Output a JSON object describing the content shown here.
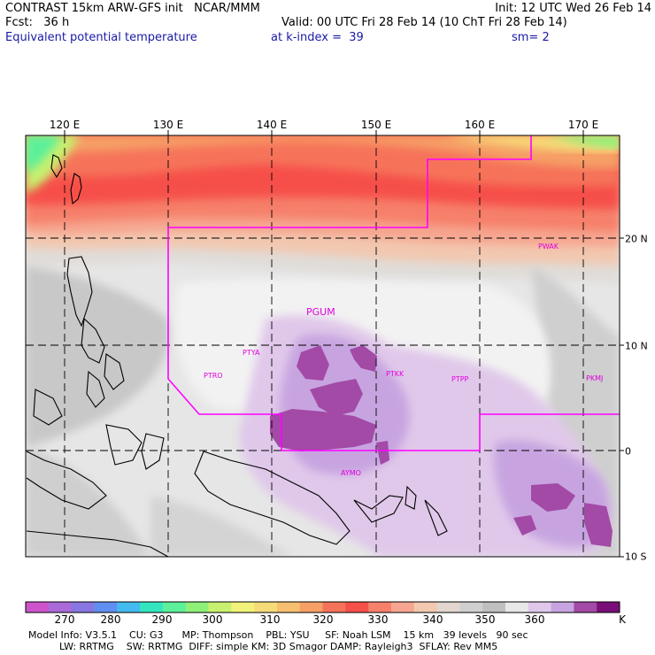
{
  "header": {
    "title": "CONTRAST 15km ARW-GFS init   NCAR/MMM",
    "init": "Init: 12 UTC Wed 26 Feb 14",
    "fcst": "Fcst:   36 h",
    "valid": "Valid: 00 UTC Fri 28 Feb 14 (10 ChT Fri 28 Feb 14)",
    "field": "Equivalent potential temperature",
    "level": "at k-index =  39",
    "smoothing": "sm= 2"
  },
  "map": {
    "lon_labels": [
      "120 E",
      "130 E",
      "140 E",
      "150 E",
      "160 E",
      "170 E"
    ],
    "lat_labels": [
      "20 N",
      "10 N",
      "0",
      "10 S"
    ],
    "stations": [
      {
        "id": "PGUM",
        "size": "large"
      },
      {
        "id": "PTYA",
        "size": "small"
      },
      {
        "id": "PTRO",
        "size": "small"
      },
      {
        "id": "PTKK",
        "size": "small"
      },
      {
        "id": "PTPP",
        "size": "small"
      },
      {
        "id": "PKMJ",
        "size": "small"
      },
      {
        "id": "PWAK",
        "size": "small"
      },
      {
        "id": "AYMO",
        "size": "small"
      }
    ],
    "colors": {
      "station": "#e000e0",
      "domain_line": "#ff00ff",
      "grid": "#000000"
    }
  },
  "colorbar": {
    "colors": [
      "#cc55cc",
      "#aa6ad8",
      "#8877e0",
      "#5f8ff0",
      "#44bbee",
      "#33e6c0",
      "#5cf09a",
      "#8ef078",
      "#c8f070",
      "#f2f27a",
      "#f6dc78",
      "#f6c070",
      "#f6a066",
      "#f6735a",
      "#f6504a",
      "#f6806a",
      "#f6a690",
      "#f2c8b0",
      "#e2d6ce",
      "#cfcfcf",
      "#bfbfbf",
      "#e8e8e8",
      "#e0c8ea",
      "#c7a4e0",
      "#a24aa6",
      "#7a0f7a"
    ],
    "labels": [
      "270",
      "280",
      "290",
      "300",
      "310",
      "320",
      "330",
      "340",
      "350",
      "360",
      "K"
    ]
  },
  "footer": {
    "line1": "Model Info: V3.5.1    CU: G3      MP: Thompson    PBL: YSU     SF: Noah LSM    15 km   39 levels   90 sec",
    "line2": "          LW: RRTMG    SW: RRTMG  DIFF: simple KM: 3D Smagor DAMP: Rayleigh3  SFLAY: Rev MM5"
  }
}
